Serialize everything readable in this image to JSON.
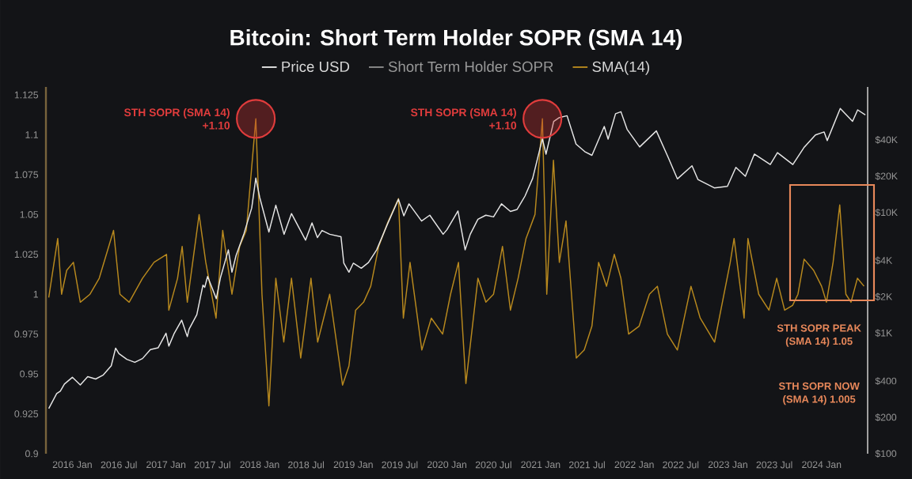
{
  "chart_data": {
    "type": "line",
    "title": "Bitcoin: Short Term Holder SOPR (SMA 14)",
    "legend": "top",
    "log": "y2",
    "xlim": [
      "2015-09-20",
      "2024-06-29"
    ],
    "xticks": [
      {
        "value": "2016-01",
        "label": "2016 Jan"
      },
      {
        "value": "2016-07",
        "label": "2016 Jul"
      },
      {
        "value": "2017-01",
        "label": "2017 Jan"
      },
      {
        "value": "2017-07",
        "label": "2017 Jul"
      },
      {
        "value": "2018-01",
        "label": "2018 Jan"
      },
      {
        "value": "2018-07",
        "label": "2018 Jul"
      },
      {
        "value": "2019-01",
        "label": "2019 Jan"
      },
      {
        "value": "2019-07",
        "label": "2019 Jul"
      },
      {
        "value": "2020-01",
        "label": "2020 Jan"
      },
      {
        "value": "2020-07",
        "label": "2020 Jul"
      },
      {
        "value": "2021-01",
        "label": "2021 Jan"
      },
      {
        "value": "2021-07",
        "label": "2021 Jul"
      },
      {
        "value": "2022-01",
        "label": "2022 Jan"
      },
      {
        "value": "2022-07",
        "label": "2022 Jul"
      },
      {
        "value": "2023-01",
        "label": "2023 Jan"
      },
      {
        "value": "2023-07",
        "label": "2023 Jul"
      },
      {
        "value": "2024-01",
        "label": "2024 Jan"
      }
    ],
    "ylim": [
      0.9,
      1.13
    ],
    "yticks": [
      0.9,
      0.925,
      0.95,
      0.975,
      1,
      1.025,
      1.05,
      1.075,
      1.1,
      1.125
    ],
    "y2lim": [
      100,
      110000
    ],
    "y2ticks": [
      {
        "value": 100,
        "label": "$100"
      },
      {
        "value": 200,
        "label": "$200"
      },
      {
        "value": 400,
        "label": "$400"
      },
      {
        "value": 1000,
        "label": "$1K"
      },
      {
        "value": 2000,
        "label": "$2K"
      },
      {
        "value": 4000,
        "label": "$4K"
      },
      {
        "value": 10000,
        "label": "$10K"
      },
      {
        "value": 20000,
        "label": "$20K"
      },
      {
        "value": 40000,
        "label": "$40K"
      }
    ],
    "series": [
      {
        "name": "Price USD",
        "color": "#e6e6e6",
        "axis": "y2",
        "x": [
          "2015-10-01",
          "2015-11-01",
          "2015-11-15",
          "2015-12-01",
          "2016-01-01",
          "2016-02-01",
          "2016-03-01",
          "2016-04-01",
          "2016-05-01",
          "2016-06-01",
          "2016-06-18",
          "2016-07-01",
          "2016-08-01",
          "2016-09-01",
          "2016-10-01",
          "2016-11-01",
          "2016-12-01",
          "2017-01-01",
          "2017-01-12",
          "2017-02-01",
          "2017-03-03",
          "2017-03-25",
          "2017-04-01",
          "2017-05-01",
          "2017-05-25",
          "2017-06-01",
          "2017-06-12",
          "2017-07-16",
          "2017-08-01",
          "2017-09-01",
          "2017-09-15",
          "2017-10-01",
          "2017-11-01",
          "2017-12-01",
          "2017-12-17",
          "2018-01-01",
          "2018-02-06",
          "2018-03-05",
          "2018-04-06",
          "2018-05-05",
          "2018-06-29",
          "2018-07-24",
          "2018-08-14",
          "2018-09-01",
          "2018-10-01",
          "2018-11-14",
          "2018-11-25",
          "2018-12-15",
          "2019-01-01",
          "2019-02-01",
          "2019-03-01",
          "2019-04-02",
          "2019-05-14",
          "2019-06-26",
          "2019-07-17",
          "2019-08-06",
          "2019-09-24",
          "2019-10-26",
          "2019-12-17",
          "2020-01-01",
          "2020-02-13",
          "2020-03-12",
          "2020-04-01",
          "2020-05-01",
          "2020-06-01",
          "2020-07-01",
          "2020-08-01",
          "2020-09-05",
          "2020-10-01",
          "2020-11-01",
          "2020-12-01",
          "2021-01-08",
          "2021-01-22",
          "2021-02-21",
          "2021-03-13",
          "2021-04-14",
          "2021-05-19",
          "2021-06-22",
          "2021-07-20",
          "2021-09-06",
          "2021-09-21",
          "2021-10-20",
          "2021-11-10",
          "2021-12-04",
          "2022-01-22",
          "2022-03-28",
          "2022-05-12",
          "2022-06-18",
          "2022-08-14",
          "2022-09-06",
          "2022-11-09",
          "2022-12-30",
          "2023-02-01",
          "2023-03-10",
          "2023-04-14",
          "2023-06-15",
          "2023-07-13",
          "2023-09-11",
          "2023-10-24",
          "2023-12-08",
          "2024-01-11",
          "2024-01-23",
          "2024-03-14",
          "2024-05-01",
          "2024-05-21",
          "2024-06-20"
        ],
        "values": [
          237,
          315,
          330,
          378,
          430,
          372,
          435,
          416,
          450,
          536,
          750,
          675,
          606,
          572,
          615,
          730,
          755,
          998,
          780,
          985,
          1280,
          935,
          1080,
          1420,
          2500,
          2400,
          2950,
          1930,
          2870,
          4900,
          3200,
          4400,
          6700,
          10900,
          19300,
          13400,
          6900,
          11500,
          6600,
          9800,
          5900,
          8200,
          6200,
          7100,
          6600,
          6300,
          3800,
          3200,
          3800,
          3450,
          3850,
          4900,
          8000,
          12900,
          9400,
          11800,
          8500,
          9500,
          6600,
          7200,
          10300,
          4900,
          6600,
          8800,
          9500,
          9200,
          11800,
          10200,
          10600,
          13700,
          19200,
          41000,
          30500,
          57000,
          61000,
          63500,
          37000,
          32000,
          29800,
          51700,
          40600,
          66000,
          68500,
          49000,
          35000,
          47500,
          29000,
          19000,
          24400,
          18800,
          16000,
          16500,
          23700,
          20000,
          30500,
          25000,
          31400,
          25000,
          34500,
          44000,
          46600,
          39500,
          73000,
          57000,
          71000,
          64500
        ]
      },
      {
        "name": "Short Term Holder SOPR",
        "color": "#8c8c8c"
      },
      {
        "name": "SMA(14)",
        "color": "#b8891e",
        "x": [
          "2015-10-01",
          "2015-11-05",
          "2015-11-20",
          "2015-12-10",
          "2016-01-05",
          "2016-02-01",
          "2016-03-10",
          "2016-04-15",
          "2016-06-10",
          "2016-07-05",
          "2016-08-10",
          "2016-10-01",
          "2016-11-15",
          "2017-01-03",
          "2017-01-12",
          "2017-02-15",
          "2017-03-05",
          "2017-03-25",
          "2017-05-10",
          "2017-06-05",
          "2017-07-15",
          "2017-08-10",
          "2017-09-15",
          "2017-10-15",
          "2017-11-10",
          "2017-12-17",
          "2018-01-10",
          "2018-02-06",
          "2018-03-05",
          "2018-04-05",
          "2018-05-05",
          "2018-06-10",
          "2018-07-20",
          "2018-08-15",
          "2018-10-01",
          "2018-11-20",
          "2018-12-15",
          "2019-01-10",
          "2019-02-10",
          "2019-03-10",
          "2019-04-10",
          "2019-05-15",
          "2019-06-26",
          "2019-07-15",
          "2019-08-10",
          "2019-09-25",
          "2019-11-01",
          "2019-12-15",
          "2020-01-15",
          "2020-02-15",
          "2020-03-15",
          "2020-05-01",
          "2020-06-01",
          "2020-07-01",
          "2020-08-05",
          "2020-09-05",
          "2020-10-05",
          "2020-11-05",
          "2020-12-10",
          "2021-01-08",
          "2021-01-25",
          "2021-02-20",
          "2021-03-15",
          "2021-04-10",
          "2021-05-20",
          "2021-06-20",
          "2021-07-20",
          "2021-08-15",
          "2021-09-15",
          "2021-10-15",
          "2021-11-10",
          "2021-12-10",
          "2022-01-20",
          "2022-03-01",
          "2022-04-01",
          "2022-05-10",
          "2022-06-18",
          "2022-08-10",
          "2022-09-15",
          "2022-11-10",
          "2023-01-10",
          "2023-01-25",
          "2023-03-05",
          "2023-03-20",
          "2023-05-01",
          "2023-06-10",
          "2023-07-10",
          "2023-08-10",
          "2023-09-10",
          "2023-10-01",
          "2023-10-25",
          "2023-12-01",
          "2024-01-01",
          "2024-01-20",
          "2024-02-15",
          "2024-03-12",
          "2024-04-05",
          "2024-04-25",
          "2024-05-20",
          "2024-06-15"
        ],
        "values": [
          0.998,
          1.035,
          1.0,
          1.015,
          1.02,
          0.995,
          1.0,
          1.01,
          1.04,
          1.0,
          0.995,
          1.01,
          1.02,
          1.025,
          0.99,
          1.01,
          1.03,
          0.995,
          1.05,
          1.02,
          0.985,
          1.04,
          1.0,
          1.03,
          1.04,
          1.11,
          1.0,
          0.93,
          1.01,
          0.97,
          1.01,
          0.96,
          1.01,
          0.97,
          1.0,
          0.943,
          0.955,
          0.99,
          0.995,
          1.005,
          1.03,
          1.045,
          1.06,
          0.985,
          1.02,
          0.965,
          0.985,
          0.975,
          1.0,
          1.02,
          0.944,
          1.01,
          0.995,
          1.0,
          1.03,
          0.99,
          1.01,
          1.035,
          1.05,
          1.11,
          1.0,
          1.084,
          1.02,
          1.046,
          0.96,
          0.965,
          0.98,
          1.02,
          1.005,
          1.025,
          1.01,
          0.975,
          0.98,
          1.0,
          1.005,
          0.975,
          0.965,
          1.005,
          0.985,
          0.97,
          1.02,
          1.035,
          0.985,
          1.035,
          1.0,
          0.99,
          1.01,
          0.99,
          0.993,
          1.0,
          1.022,
          1.015,
          1.005,
          0.995,
          1.02,
          1.056,
          1.0,
          0.995,
          1.01,
          1.005
        ]
      }
    ],
    "annotations": [
      {
        "text": "STH SOPR (SMA 14) +1.10",
        "x": "2017-12-17",
        "y": 1.11
      },
      {
        "text": "STH SOPR (SMA 14) +1.10",
        "x": "2021-01-08",
        "y": 1.11
      },
      "STH SOPR PEAK (SMA 14) 1.05",
      "STH SOPR NOW (SMA 14) 1.005"
    ]
  }
}
